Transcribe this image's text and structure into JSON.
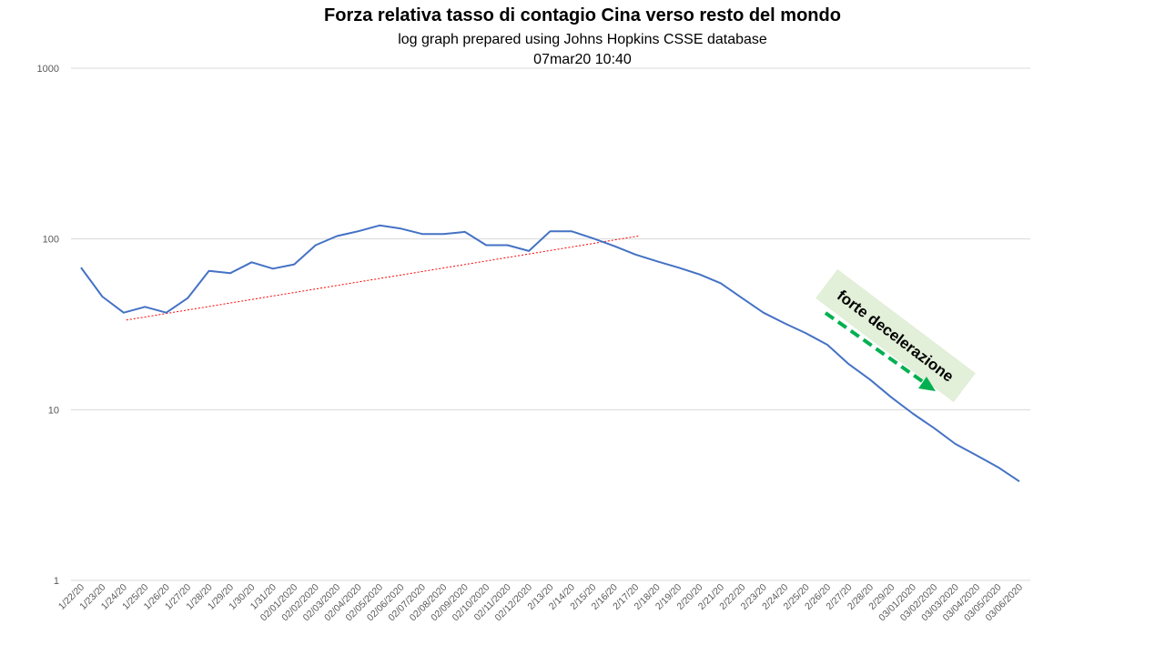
{
  "chart_data": {
    "type": "line",
    "title": "Forza relativa tasso di contagio Cina verso resto del mondo",
    "subtitle": "log graph prepared using Johns Hopkins CSSE database",
    "timestamp": "07mar20 10:40",
    "y_scale": "log",
    "ylim": [
      1,
      1000
    ],
    "y_ticks": [
      "1",
      "10",
      "100",
      "1000"
    ],
    "grid": true,
    "categories": [
      "1/22/20",
      "1/23/20",
      "1/24/20",
      "1/25/20",
      "1/26/20",
      "1/27/20",
      "1/28/20",
      "1/29/20",
      "1/30/20",
      "1/31/20",
      "02/01/2020",
      "02/02/2020",
      "02/03/2020",
      "02/04/2020",
      "02/05/2020",
      "02/06/2020",
      "02/07/2020",
      "02/08/2020",
      "02/09/2020",
      "02/10/2020",
      "02/11/2020",
      "02/12/2020",
      "2/13/20",
      "2/14/20",
      "2/15/20",
      "2/16/20",
      "2/17/20",
      "2/18/20",
      "2/19/20",
      "2/20/20",
      "2/21/20",
      "2/22/20",
      "2/23/20",
      "2/24/20",
      "2/25/20",
      "2/26/20",
      "2/27/20",
      "2/28/20",
      "2/29/20",
      "03/01/2020",
      "03/02/2020",
      "03/03/2020",
      "03/04/2020",
      "03/05/2020",
      "03/06/2020"
    ],
    "series": [
      {
        "color": "#4472c4",
        "values": [
          68,
          46,
          37,
          40,
          37,
          45,
          65,
          63,
          73,
          67,
          71,
          92,
          104,
          111,
          120,
          115,
          107,
          107,
          110,
          92,
          92,
          85,
          111,
          111,
          101,
          91,
          81,
          74,
          68,
          62,
          55,
          45,
          37,
          32,
          28,
          24,
          18.5,
          15,
          11.8,
          9.5,
          7.8,
          6.3,
          5.4,
          4.6,
          3.8
        ]
      }
    ],
    "trendline": {
      "color": "#ff0000",
      "style": "dotted",
      "start": {
        "x": "1/24/20",
        "y": 33.5
      },
      "end": {
        "x": "2/17/20",
        "y": 104
      }
    },
    "annotation": {
      "text": "forte decelerazione",
      "background": "#e2efd9",
      "arrow_color": "#00b050",
      "arrow_style": "dashed"
    }
  }
}
